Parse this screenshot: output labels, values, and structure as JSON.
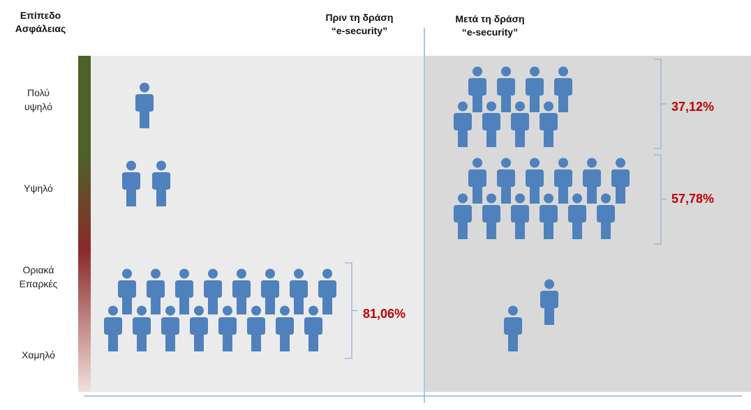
{
  "chart_data": {
    "type": "pictogram",
    "y_axis_title": [
      "Επίπεδο",
      "Ασφάλειας"
    ],
    "panels": [
      {
        "title": [
          "Πριν τη δράση",
          "“e-security”"
        ]
      },
      {
        "title": [
          "Μετά τη δράση",
          "“e-security”"
        ]
      }
    ],
    "levels": [
      {
        "label": [
          "Πολύ",
          "υψηλό"
        ],
        "before": 1,
        "after": 8
      },
      {
        "label": [
          "Υψηλό"
        ],
        "before": 2,
        "after": 12
      },
      {
        "label": [
          "Οριακά",
          "Επαρκές"
        ],
        "before": 16,
        "after": 2
      },
      {
        "label": [
          "Χαμηλό"
        ],
        "before": 0,
        "after": 0
      }
    ],
    "annotations": [
      {
        "text": "81,06%",
        "panel": "before",
        "levels": [
          "Οριακά Επαρκές",
          "Χαμηλό"
        ]
      },
      {
        "text": "37,12%",
        "panel": "after",
        "levels": [
          "Πολύ υψηλό"
        ]
      },
      {
        "text": "57,78%",
        "panel": "after",
        "levels": [
          "Υψηλό"
        ]
      }
    ],
    "colors": {
      "person": "#4f81bd",
      "panel_before": "#ebebeb",
      "panel_after": "#d9d9d9",
      "axis_line": "#8db3e2",
      "bracket": "#95b3d7",
      "annotation": "#c00000",
      "scale_top": "#4e6128",
      "scale_mid": "#8b2a2a",
      "scale_bottom": "#f2e0dc"
    }
  }
}
